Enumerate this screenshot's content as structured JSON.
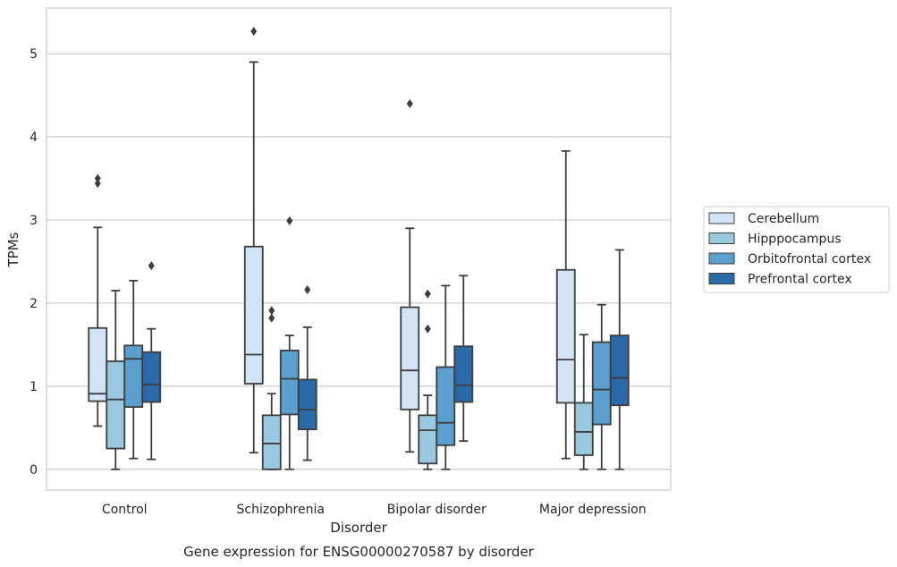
{
  "chart_data": {
    "type": "box",
    "caption": "Gene expression for ENSG00000270587 by disorder",
    "xlabel": "Disorder",
    "ylabel": "TPMs",
    "ylim": [
      -0.25,
      5.55
    ],
    "yticks": [
      0,
      1,
      2,
      3,
      4,
      5
    ],
    "grid": "horizontal",
    "legend_position": "right",
    "categories": [
      "Control",
      "Schizophrenia",
      "Bipolar disorder",
      "Major depression"
    ],
    "series": [
      {
        "name": "Cerebellum",
        "color": "#d2e3f3",
        "boxes": [
          {
            "whisker_low": 0.52,
            "q1": 0.82,
            "median": 0.91,
            "q3": 1.7,
            "whisker_high": 2.91,
            "outliers": [
              3.44,
              3.5
            ]
          },
          {
            "whisker_low": 0.2,
            "q1": 1.03,
            "median": 1.38,
            "q3": 2.68,
            "whisker_high": 4.9,
            "outliers": [
              5.27
            ]
          },
          {
            "whisker_low": 0.21,
            "q1": 0.72,
            "median": 1.19,
            "q3": 1.95,
            "whisker_high": 2.9,
            "outliers": [
              4.4
            ]
          },
          {
            "whisker_low": 0.13,
            "q1": 0.8,
            "median": 1.32,
            "q3": 2.4,
            "whisker_high": 3.83,
            "outliers": []
          }
        ]
      },
      {
        "name": "Hipppocampus",
        "color": "#9ac8e0",
        "boxes": [
          {
            "whisker_low": 0.0,
            "q1": 0.25,
            "median": 0.84,
            "q3": 1.3,
            "whisker_high": 2.15,
            "outliers": []
          },
          {
            "whisker_low": 0.0,
            "q1": 0.0,
            "median": 0.31,
            "q3": 0.65,
            "whisker_high": 0.91,
            "outliers": [
              1.82,
              1.91
            ]
          },
          {
            "whisker_low": 0.0,
            "q1": 0.07,
            "median": 0.47,
            "q3": 0.65,
            "whisker_high": 0.89,
            "outliers": [
              1.69,
              2.11
            ]
          },
          {
            "whisker_low": 0.0,
            "q1": 0.17,
            "median": 0.45,
            "q3": 0.8,
            "whisker_high": 1.62,
            "outliers": []
          }
        ]
      },
      {
        "name": "Orbitofrontal cortex",
        "color": "#5a9fcd",
        "boxes": [
          {
            "whisker_low": 0.13,
            "q1": 0.75,
            "median": 1.33,
            "q3": 1.49,
            "whisker_high": 2.27,
            "outliers": []
          },
          {
            "whisker_low": 0.0,
            "q1": 0.66,
            "median": 1.09,
            "q3": 1.43,
            "whisker_high": 1.61,
            "outliers": [
              2.99
            ]
          },
          {
            "whisker_low": 0.0,
            "q1": 0.29,
            "median": 0.56,
            "q3": 1.23,
            "whisker_high": 2.21,
            "outliers": []
          },
          {
            "whisker_low": 0.0,
            "q1": 0.54,
            "median": 0.96,
            "q3": 1.53,
            "whisker_high": 1.98,
            "outliers": []
          }
        ]
      },
      {
        "name": "Prefrontal cortex",
        "color": "#2b6aa9",
        "boxes": [
          {
            "whisker_low": 0.12,
            "q1": 0.81,
            "median": 1.02,
            "q3": 1.41,
            "whisker_high": 1.69,
            "outliers": [
              2.45
            ]
          },
          {
            "whisker_low": 0.11,
            "q1": 0.48,
            "median": 0.72,
            "q3": 1.08,
            "whisker_high": 1.71,
            "outliers": [
              2.16
            ]
          },
          {
            "whisker_low": 0.34,
            "q1": 0.81,
            "median": 1.01,
            "q3": 1.48,
            "whisker_high": 2.33,
            "outliers": []
          },
          {
            "whisker_low": 0.0,
            "q1": 0.77,
            "median": 1.1,
            "q3": 1.61,
            "whisker_high": 2.64,
            "outliers": []
          }
        ]
      }
    ]
  }
}
